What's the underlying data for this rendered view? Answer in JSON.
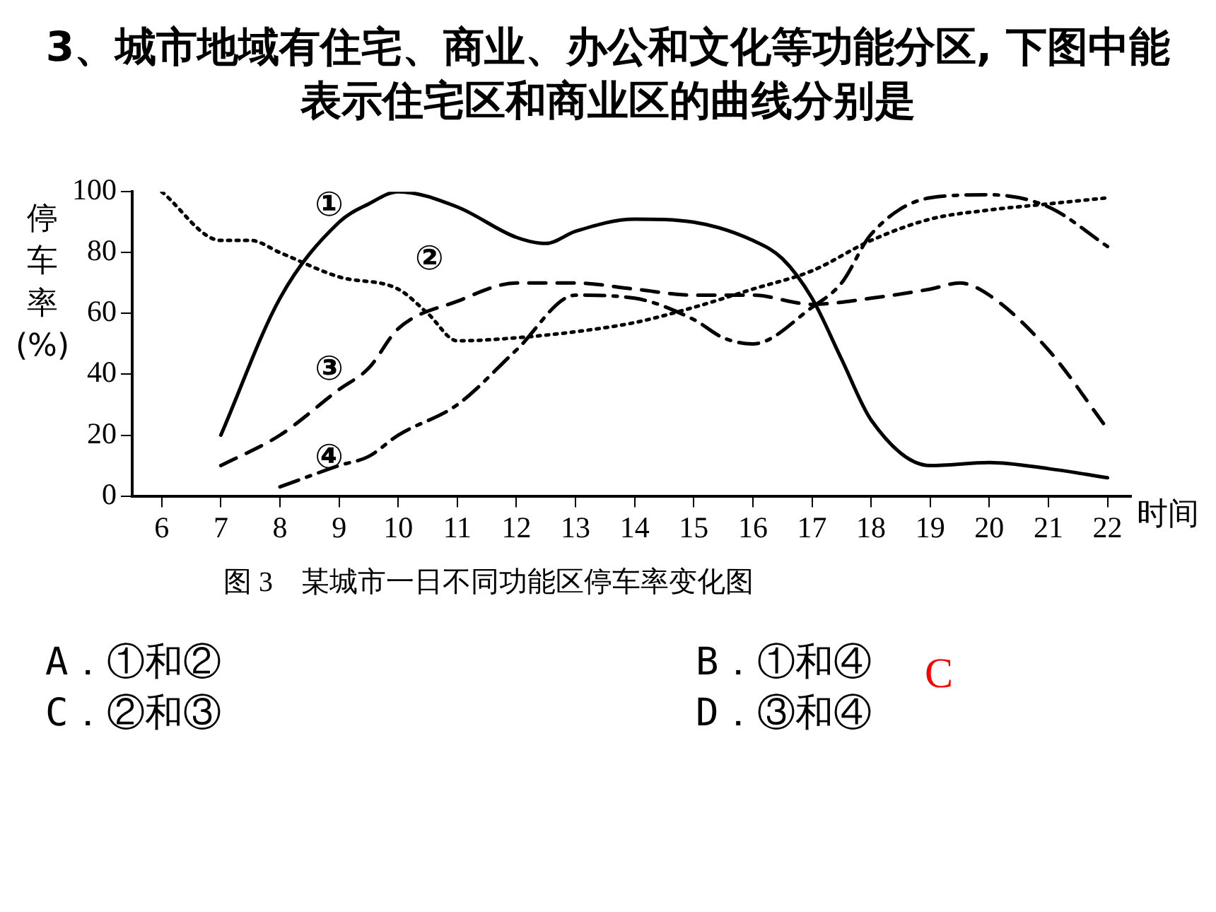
{
  "chart_data": {
    "type": "line",
    "title": "3、城市地域有住宅、商业、办公和文化等功能分区, 下图中能表示住宅区和商业区的曲线分别是",
    "xlabel": "时间",
    "ylabel": "停车率(%)",
    "xlim": [
      5.5,
      22.4
    ],
    "ylim": [
      0,
      100
    ],
    "xticks": [
      6,
      7,
      8,
      9,
      10,
      11,
      12,
      13,
      14,
      15,
      16,
      17,
      18,
      19,
      20,
      21,
      22
    ],
    "yticks": [
      0,
      20,
      40,
      60,
      80,
      100
    ],
    "grid": false,
    "legend": false,
    "marker": "none",
    "series": [
      {
        "color": "#000000",
        "line_style": "solid",
        "x": [
          7,
          8,
          9,
          9.5,
          10,
          11,
          12,
          12.5,
          13,
          14,
          15,
          16,
          16.5,
          17,
          17.5,
          18,
          19,
          20,
          21,
          22
        ],
        "values": [
          20,
          65,
          90,
          96,
          100,
          95,
          85,
          83,
          87,
          91,
          90,
          84,
          78,
          65,
          45,
          25,
          10,
          11,
          9,
          6
        ]
      },
      {
        "color": "#000000",
        "line_style": "dotted",
        "x": [
          6,
          7,
          7.5,
          8,
          9,
          10,
          10.5,
          11,
          12,
          13,
          14,
          15,
          16,
          17,
          18,
          19,
          20,
          21,
          22
        ],
        "values": [
          100,
          84,
          84,
          80,
          72,
          68,
          60,
          51,
          52,
          54,
          57,
          62,
          68,
          74,
          84,
          91,
          94,
          96,
          98
        ]
      },
      {
        "color": "#000000",
        "line_style": "dashed",
        "x": [
          7,
          8,
          9,
          9.5,
          10,
          11,
          12,
          13,
          14,
          15,
          16,
          17,
          18,
          19,
          19.5,
          20,
          21,
          22
        ],
        "values": [
          10,
          20,
          35,
          42,
          55,
          64,
          70,
          70,
          68,
          66,
          66,
          63,
          65,
          68,
          70,
          66,
          48,
          22
        ]
      },
      {
        "color": "#000000",
        "line_style": "dashdot",
        "x": [
          8,
          9,
          9.5,
          10,
          11,
          12,
          13,
          14,
          15,
          15.5,
          16,
          17,
          17.5,
          18,
          19,
          20,
          21,
          22
        ],
        "values": [
          3,
          10,
          13,
          20,
          30,
          48,
          66,
          65,
          58,
          52,
          50,
          62,
          70,
          86,
          98,
          99,
          95,
          82
        ]
      }
    ],
    "annotations": [
      "图 3　某城市一日不同功能区停车率变化图",
      "A．①和②",
      "B．①和④",
      "C．②和③",
      "D．③和④",
      "C",
      "①",
      "②",
      "③",
      "④"
    ]
  }
}
